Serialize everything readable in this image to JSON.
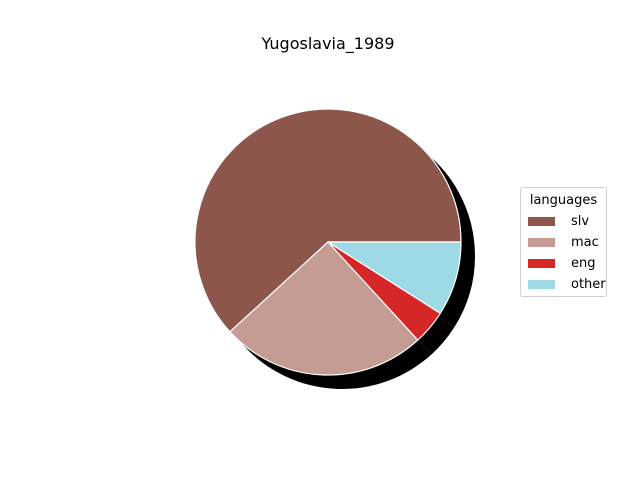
{
  "chart_data": {
    "type": "pie",
    "title": "Yugoslavia_1989",
    "legend_title": "languages",
    "legend_position": "right",
    "shadow": true,
    "start_angle_deg": 0,
    "direction": "counterclockwise",
    "slices": [
      {
        "label": "slv",
        "value": 61.8,
        "color": "#8c564b"
      },
      {
        "label": "mac",
        "value": 25.0,
        "color": "#c49c94"
      },
      {
        "label": "eng",
        "value": 4.2,
        "color": "#d62728"
      },
      {
        "label": "other",
        "value": 9.0,
        "color": "#9edae5"
      }
    ]
  }
}
